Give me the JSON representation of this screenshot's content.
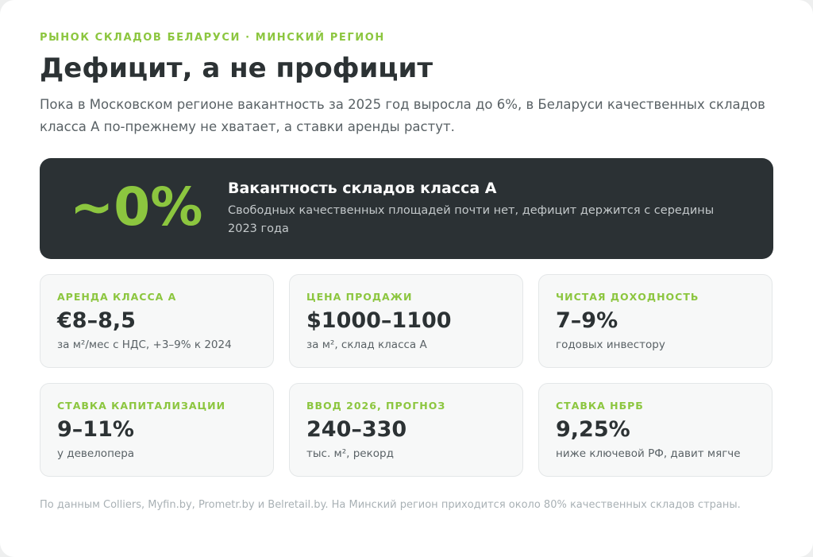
{
  "header": {
    "eyebrow": "РЫНОК СКЛАДОВ БЕЛАРУСИ · МИНСКИЙ РЕГИОН",
    "title": "Дефицит, а не профицит",
    "lead": "Пока в Московском регионе вакантность за 2025 год выросла до 6%, в Беларуси качественных складов класса А по-прежнему не хватает, а ставки аренды растут."
  },
  "hero": {
    "value": "~0%",
    "title": "Вакантность складов класса А",
    "description": "Свободных качественных площадей почти нет, дефицит держится с середины 2023 года"
  },
  "stats": [
    {
      "label": "АРЕНДА КЛАССА А",
      "value": "€8–8,5",
      "note": "за м²/мес с НДС, +3–9% к 2024"
    },
    {
      "label": "ЦЕНА ПРОДАЖИ",
      "value": "$1000–1100",
      "note": "за м², склад класса А"
    },
    {
      "label": "ЧИСТАЯ ДОХОДНОСТЬ",
      "value": "7–9%",
      "note": "годовых инвестору"
    },
    {
      "label": "СТАВКА КАПИТАЛИЗАЦИИ",
      "value": "9–11%",
      "note": "у девелопера"
    },
    {
      "label": "ВВОД 2026, ПРОГНОЗ",
      "value": "240–330",
      "note": "тыс. м², рекорд"
    },
    {
      "label": "СТАВКА НБРБ",
      "value": "9,25%",
      "note": "ниже ключевой РФ, давит мягче"
    }
  ],
  "footnote": "По данным Colliers, Myfin.by, Prometr.by и Belretail.by. На Минский регион приходится около 80% качественных складов страны.",
  "colors": {
    "accent": "#8cc63f",
    "hero_bg": "#2b3134",
    "text_dark": "#2c3234",
    "text_muted": "#5a6266"
  }
}
